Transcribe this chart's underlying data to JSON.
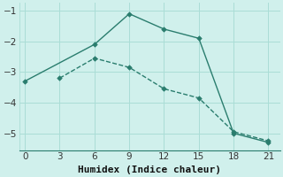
{
  "series": [
    {
      "x": [
        0,
        6,
        9,
        12,
        15,
        18,
        21
      ],
      "y": [
        -3.3,
        -2.1,
        -1.1,
        -1.6,
        -1.9,
        -5.0,
        -5.3
      ],
      "linestyle": "-"
    },
    {
      "x": [
        3,
        6,
        9,
        12,
        15,
        18,
        21
      ],
      "y": [
        -3.2,
        -2.55,
        -2.85,
        -3.55,
        -3.85,
        -4.95,
        -5.25
      ],
      "linestyle": "--"
    }
  ],
  "line_color": "#2a7d6e",
  "marker": "D",
  "markersize": 2.8,
  "linewidth": 1.0,
  "xlabel": "Humidex (Indice chaleur)",
  "xlim": [
    -0.5,
    22
  ],
  "ylim": [
    -5.55,
    -0.75
  ],
  "xticks": [
    0,
    3,
    6,
    9,
    12,
    15,
    18,
    21
  ],
  "yticks": [
    -5,
    -4,
    -3,
    -2,
    -1
  ],
  "bg_color": "#d0f0ec",
  "grid_color": "#aaddd6",
  "xlabel_fontsize": 8,
  "tick_fontsize": 7.5
}
